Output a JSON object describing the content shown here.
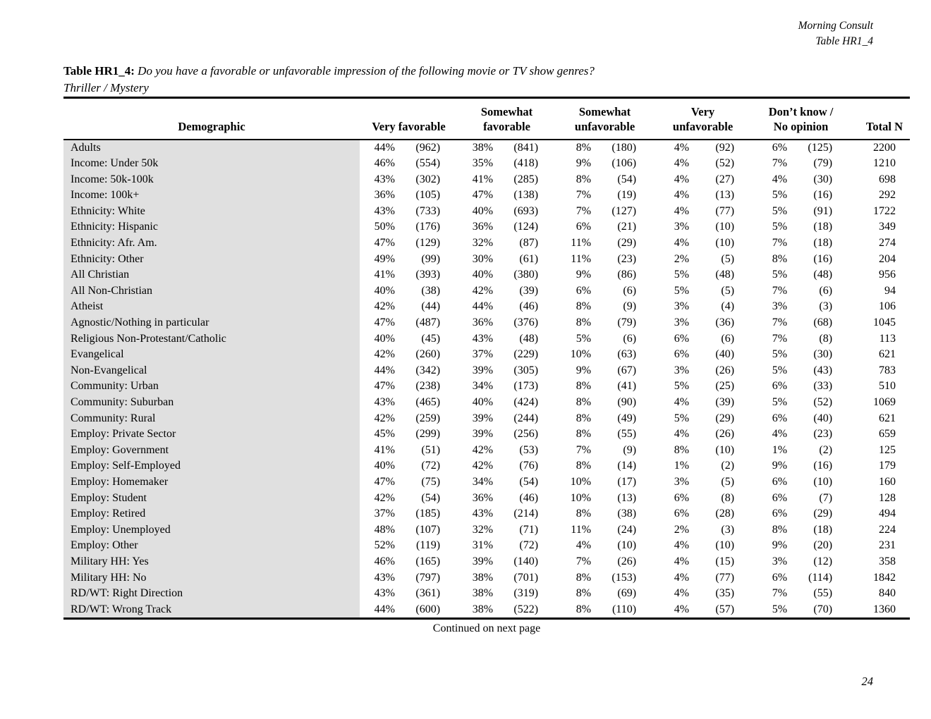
{
  "page": {
    "corner_line1": "Morning Consult",
    "corner_line2": "Table HR1_4",
    "title_label": "Table HR1_4:",
    "title_question": "Do you have a favorable or unfavorable impression of the following movie or TV show genres?",
    "subtitle": "Thriller / Mystery",
    "continued_note": "Continued on next page",
    "page_number": "24"
  },
  "colors": {
    "demographic_column_bg": "#e0e0e0",
    "text": "#000000",
    "rule": "#000000"
  },
  "table": {
    "header": {
      "demographic": "Demographic",
      "groups": [
        "Very favorable",
        "Somewhat\nfavorable",
        "Somewhat\nunfavorable",
        "Very\nunfavorable",
        "Don’t know /\nNo opinion"
      ],
      "total": "Total N"
    },
    "rows": [
      {
        "label": "Adults",
        "values": [
          "44%",
          "(962)",
          "38%",
          "(841)",
          "8%",
          "(180)",
          "4%",
          "(92)",
          "6%",
          "(125)",
          "2200"
        ]
      },
      {
        "label": "Income: Under 50k",
        "values": [
          "46%",
          "(554)",
          "35%",
          "(418)",
          "9%",
          "(106)",
          "4%",
          "(52)",
          "7%",
          "(79)",
          "1210"
        ]
      },
      {
        "label": "Income: 50k-100k",
        "values": [
          "43%",
          "(302)",
          "41%",
          "(285)",
          "8%",
          "(54)",
          "4%",
          "(27)",
          "4%",
          "(30)",
          "698"
        ]
      },
      {
        "label": "Income: 100k+",
        "values": [
          "36%",
          "(105)",
          "47%",
          "(138)",
          "7%",
          "(19)",
          "4%",
          "(13)",
          "5%",
          "(16)",
          "292"
        ]
      },
      {
        "label": "Ethnicity: White",
        "values": [
          "43%",
          "(733)",
          "40%",
          "(693)",
          "7%",
          "(127)",
          "4%",
          "(77)",
          "5%",
          "(91)",
          "1722"
        ]
      },
      {
        "label": "Ethnicity: Hispanic",
        "values": [
          "50%",
          "(176)",
          "36%",
          "(124)",
          "6%",
          "(21)",
          "3%",
          "(10)",
          "5%",
          "(18)",
          "349"
        ]
      },
      {
        "label": "Ethnicity: Afr. Am.",
        "values": [
          "47%",
          "(129)",
          "32%",
          "(87)",
          "11%",
          "(29)",
          "4%",
          "(10)",
          "7%",
          "(18)",
          "274"
        ]
      },
      {
        "label": "Ethnicity: Other",
        "values": [
          "49%",
          "(99)",
          "30%",
          "(61)",
          "11%",
          "(23)",
          "2%",
          "(5)",
          "8%",
          "(16)",
          "204"
        ]
      },
      {
        "label": "All Christian",
        "values": [
          "41%",
          "(393)",
          "40%",
          "(380)",
          "9%",
          "(86)",
          "5%",
          "(48)",
          "5%",
          "(48)",
          "956"
        ]
      },
      {
        "label": "All Non-Christian",
        "values": [
          "40%",
          "(38)",
          "42%",
          "(39)",
          "6%",
          "(6)",
          "5%",
          "(5)",
          "7%",
          "(6)",
          "94"
        ]
      },
      {
        "label": "Atheist",
        "values": [
          "42%",
          "(44)",
          "44%",
          "(46)",
          "8%",
          "(9)",
          "3%",
          "(4)",
          "3%",
          "(3)",
          "106"
        ]
      },
      {
        "label": "Agnostic/Nothing in particular",
        "values": [
          "47%",
          "(487)",
          "36%",
          "(376)",
          "8%",
          "(79)",
          "3%",
          "(36)",
          "7%",
          "(68)",
          "1045"
        ]
      },
      {
        "label": "Religious Non-Protestant/Catholic",
        "values": [
          "40%",
          "(45)",
          "43%",
          "(48)",
          "5%",
          "(6)",
          "6%",
          "(6)",
          "7%",
          "(8)",
          "113"
        ]
      },
      {
        "label": "Evangelical",
        "values": [
          "42%",
          "(260)",
          "37%",
          "(229)",
          "10%",
          "(63)",
          "6%",
          "(40)",
          "5%",
          "(30)",
          "621"
        ]
      },
      {
        "label": "Non-Evangelical",
        "values": [
          "44%",
          "(342)",
          "39%",
          "(305)",
          "9%",
          "(67)",
          "3%",
          "(26)",
          "5%",
          "(43)",
          "783"
        ]
      },
      {
        "label": "Community: Urban",
        "values": [
          "47%",
          "(238)",
          "34%",
          "(173)",
          "8%",
          "(41)",
          "5%",
          "(25)",
          "6%",
          "(33)",
          "510"
        ]
      },
      {
        "label": "Community: Suburban",
        "values": [
          "43%",
          "(465)",
          "40%",
          "(424)",
          "8%",
          "(90)",
          "4%",
          "(39)",
          "5%",
          "(52)",
          "1069"
        ]
      },
      {
        "label": "Community: Rural",
        "values": [
          "42%",
          "(259)",
          "39%",
          "(244)",
          "8%",
          "(49)",
          "5%",
          "(29)",
          "6%",
          "(40)",
          "621"
        ]
      },
      {
        "label": "Employ: Private Sector",
        "values": [
          "45%",
          "(299)",
          "39%",
          "(256)",
          "8%",
          "(55)",
          "4%",
          "(26)",
          "4%",
          "(23)",
          "659"
        ]
      },
      {
        "label": "Employ: Government",
        "values": [
          "41%",
          "(51)",
          "42%",
          "(53)",
          "7%",
          "(9)",
          "8%",
          "(10)",
          "1%",
          "(2)",
          "125"
        ]
      },
      {
        "label": "Employ: Self-Employed",
        "values": [
          "40%",
          "(72)",
          "42%",
          "(76)",
          "8%",
          "(14)",
          "1%",
          "(2)",
          "9%",
          "(16)",
          "179"
        ]
      },
      {
        "label": "Employ: Homemaker",
        "values": [
          "47%",
          "(75)",
          "34%",
          "(54)",
          "10%",
          "(17)",
          "3%",
          "(5)",
          "6%",
          "(10)",
          "160"
        ]
      },
      {
        "label": "Employ: Student",
        "values": [
          "42%",
          "(54)",
          "36%",
          "(46)",
          "10%",
          "(13)",
          "6%",
          "(8)",
          "6%",
          "(7)",
          "128"
        ]
      },
      {
        "label": "Employ: Retired",
        "values": [
          "37%",
          "(185)",
          "43%",
          "(214)",
          "8%",
          "(38)",
          "6%",
          "(28)",
          "6%",
          "(29)",
          "494"
        ]
      },
      {
        "label": "Employ: Unemployed",
        "values": [
          "48%",
          "(107)",
          "32%",
          "(71)",
          "11%",
          "(24)",
          "2%",
          "(3)",
          "8%",
          "(18)",
          "224"
        ]
      },
      {
        "label": "Employ: Other",
        "values": [
          "52%",
          "(119)",
          "31%",
          "(72)",
          "4%",
          "(10)",
          "4%",
          "(10)",
          "9%",
          "(20)",
          "231"
        ]
      },
      {
        "label": "Military HH: Yes",
        "values": [
          "46%",
          "(165)",
          "39%",
          "(140)",
          "7%",
          "(26)",
          "4%",
          "(15)",
          "3%",
          "(12)",
          "358"
        ]
      },
      {
        "label": "Military HH: No",
        "values": [
          "43%",
          "(797)",
          "38%",
          "(701)",
          "8%",
          "(153)",
          "4%",
          "(77)",
          "6%",
          "(114)",
          "1842"
        ]
      },
      {
        "label": "RD/WT: Right Direction",
        "values": [
          "43%",
          "(361)",
          "38%",
          "(319)",
          "8%",
          "(69)",
          "4%",
          "(35)",
          "7%",
          "(55)",
          "840"
        ]
      },
      {
        "label": "RD/WT: Wrong Track",
        "values": [
          "44%",
          "(600)",
          "38%",
          "(522)",
          "8%",
          "(110)",
          "4%",
          "(57)",
          "5%",
          "(70)",
          "1360"
        ]
      }
    ]
  }
}
